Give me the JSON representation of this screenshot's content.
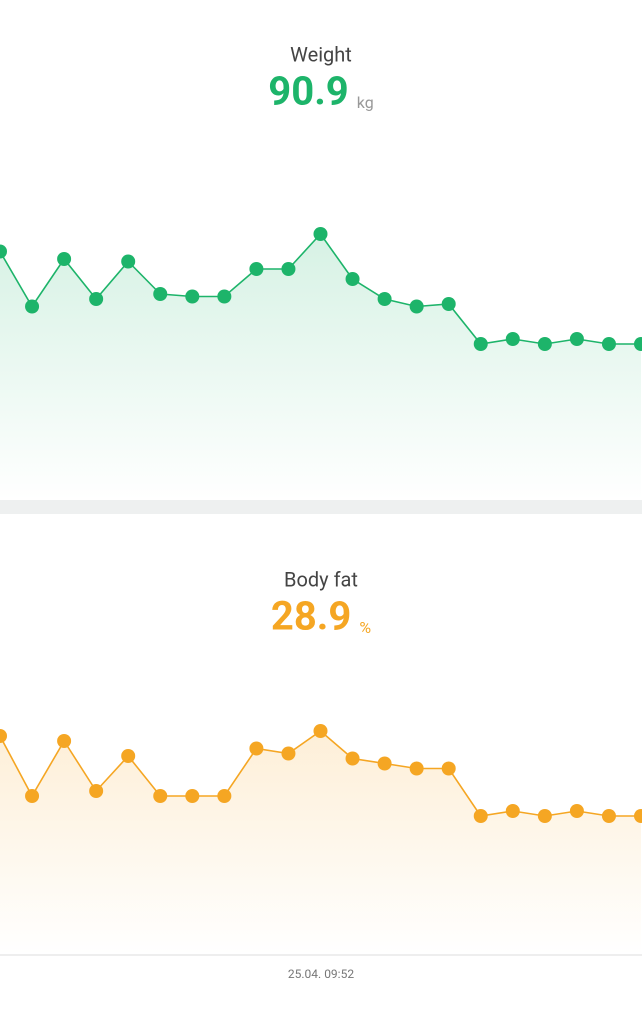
{
  "chart_data": [
    {
      "type": "line",
      "title": "Weight",
      "current_value": "90.9",
      "unit": "kg",
      "color": "#1db46a",
      "unit_color": "#999999",
      "categories": [
        null,
        null,
        null,
        null,
        null,
        null,
        null,
        null,
        null,
        null,
        null,
        null,
        null,
        null,
        null,
        null,
        null,
        null,
        null,
        null,
        null
      ],
      "values": [
        94.6,
        92.4,
        94.3,
        92.7,
        94.2,
        92.9,
        92.8,
        92.8,
        93.9,
        93.9,
        95.3,
        93.5,
        92.7,
        92.4,
        92.5,
        90.9,
        91.1,
        90.9,
        91.1,
        90.9,
        90.9
      ],
      "ylim": [
        86,
        97
      ]
    },
    {
      "type": "line",
      "title": "Body fat",
      "current_value": "28.9",
      "unit": "%",
      "color": "#f5a623",
      "unit_color": "#f5a623",
      "categories": [
        null,
        null,
        null,
        null,
        null,
        null,
        null,
        null,
        null,
        null,
        null,
        null,
        null,
        null,
        null,
        null,
        null,
        null,
        null,
        null,
        null
      ],
      "values": [
        32.1,
        29.7,
        31.9,
        29.9,
        31.3,
        29.7,
        29.7,
        29.7,
        31.6,
        31.4,
        32.3,
        31.2,
        31.0,
        30.8,
        30.8,
        28.9,
        29.1,
        28.9,
        29.1,
        28.9,
        28.9
      ],
      "ylim": [
        25,
        35
      ]
    }
  ],
  "footer_label": "25.04. 09:52"
}
